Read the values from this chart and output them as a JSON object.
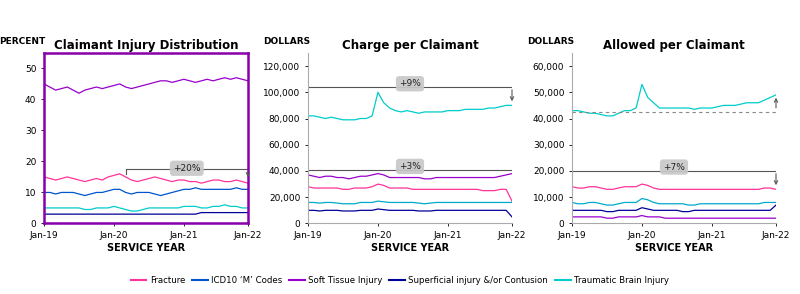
{
  "titles": [
    "Claimant Injury Distribution",
    "Charge per Claimant",
    "Allowed per Claimant"
  ],
  "ylabels": [
    "PERCENT",
    "DOLLARS",
    "DOLLARS"
  ],
  "xlabel": "SERVICE YEAR",
  "xtick_labels": [
    "Jan-19",
    "Jan-20",
    "Jan-21",
    "Jan-22"
  ],
  "chart1": {
    "ylim": [
      0,
      55
    ],
    "yticks": [
      0,
      10,
      20,
      30,
      40,
      50
    ],
    "series": {
      "Soft Tissue Injury": {
        "color": "#9900CC",
        "values": [
          45,
          44,
          43,
          43.5,
          44,
          43,
          42,
          43,
          43.5,
          44,
          43.5,
          44,
          44.5,
          45,
          44,
          43.5,
          44,
          44.5,
          45,
          45.5,
          46,
          46,
          45.5,
          46,
          46.5,
          46,
          45.5,
          46,
          46.5,
          46,
          46.5,
          47,
          46.5,
          47,
          46.5,
          46
        ]
      },
      "Fracture": {
        "color": "#FF3399",
        "values": [
          15,
          14.5,
          14,
          14.5,
          15,
          14.5,
          14,
          13.5,
          14,
          14.5,
          14,
          15,
          15.5,
          16,
          15,
          14,
          13.5,
          14,
          14.5,
          15,
          14.5,
          14,
          13.5,
          14,
          14,
          13.5,
          13.5,
          13,
          13.5,
          14,
          14,
          13.5,
          13.5,
          14,
          13.5,
          13
        ]
      },
      "ICD10 M Codes": {
        "color": "#0055CC",
        "values": [
          10,
          10,
          9.5,
          10,
          10,
          10,
          9.5,
          9,
          9.5,
          10,
          10,
          10.5,
          11,
          11,
          10,
          9.5,
          10,
          10,
          10,
          9.5,
          9,
          9.5,
          10,
          10.5,
          11,
          11,
          11.5,
          11,
          11,
          11,
          11,
          11,
          11,
          11.5,
          11,
          11
        ]
      },
      "Traumatic Brain Injury": {
        "color": "#00CCCC",
        "values": [
          5,
          5,
          5,
          5,
          5,
          5,
          5,
          4.5,
          4.5,
          5,
          5,
          5,
          5.5,
          5,
          4.5,
          4,
          4,
          4.5,
          5,
          5,
          5,
          5,
          5,
          5,
          5.5,
          5.5,
          5.5,
          5,
          5,
          5.5,
          5.5,
          6,
          5.5,
          5.5,
          5,
          5
        ]
      },
      "Superficial injury": {
        "color": "#000099",
        "values": [
          3,
          3,
          3,
          3,
          3,
          3,
          3,
          3,
          3,
          3,
          3,
          3,
          3,
          3,
          3,
          3,
          3,
          3,
          3,
          3,
          3,
          3,
          3,
          3,
          3,
          3,
          3,
          3.5,
          3.5,
          3.5,
          3.5,
          3.5,
          3.5,
          3.5,
          3.5,
          3.5
        ]
      }
    },
    "border_color": "#8800AA"
  },
  "chart2": {
    "ylim": [
      0,
      130000
    ],
    "yticks": [
      0,
      20000,
      40000,
      60000,
      80000,
      100000,
      120000
    ],
    "ytick_labels": [
      "0",
      "20,000",
      "40,000",
      "60,000",
      "80,000",
      "100,000",
      "120,000"
    ],
    "series": {
      "Traumatic Brain Injury": {
        "color": "#00CCCC",
        "values": [
          82000,
          82000,
          81000,
          80000,
          81000,
          80000,
          79000,
          79000,
          79000,
          80000,
          80000,
          82000,
          100000,
          92000,
          88000,
          86000,
          85000,
          86000,
          85000,
          84000,
          85000,
          85000,
          85000,
          85000,
          86000,
          86000,
          86000,
          87000,
          87000,
          87000,
          87000,
          88000,
          88000,
          89000,
          90000,
          90000
        ]
      },
      "Soft Tissue Injury": {
        "color": "#9900CC",
        "values": [
          37000,
          36000,
          35000,
          36000,
          36000,
          35000,
          35000,
          34000,
          35000,
          36000,
          36000,
          37000,
          38000,
          37000,
          35000,
          35000,
          35000,
          35000,
          35000,
          35000,
          34000,
          34000,
          35000,
          35000,
          35000,
          35000,
          35000,
          35000,
          35000,
          35000,
          35000,
          35000,
          35000,
          36000,
          37000,
          38000
        ]
      },
      "Fracture": {
        "color": "#FF3399",
        "values": [
          28000,
          27000,
          27000,
          27000,
          27000,
          27000,
          26000,
          26000,
          27000,
          27000,
          27000,
          28000,
          30000,
          29000,
          27000,
          27000,
          27000,
          27000,
          26000,
          26000,
          26000,
          26000,
          26000,
          26000,
          26000,
          26000,
          26000,
          26000,
          26000,
          26000,
          25000,
          25000,
          25000,
          26000,
          26000,
          17000
        ]
      },
      "ICD10 M Codes": {
        "color": "#00AACC",
        "values": [
          16000,
          16000,
          15500,
          16000,
          16000,
          15500,
          15000,
          15000,
          15000,
          16000,
          16000,
          16000,
          17000,
          16500,
          16000,
          16000,
          16000,
          16000,
          16000,
          15500,
          15000,
          15500,
          16000,
          16000,
          16000,
          16000,
          16000,
          16000,
          16000,
          16000,
          16000,
          16000,
          16000,
          16000,
          16000,
          16000
        ]
      },
      "Superficial injury": {
        "color": "#000099",
        "values": [
          10000,
          10000,
          9500,
          10000,
          10000,
          10000,
          9500,
          9500,
          9500,
          10000,
          10000,
          10000,
          11000,
          10500,
          10000,
          10000,
          10000,
          10000,
          10000,
          9500,
          9500,
          9500,
          10000,
          10000,
          10000,
          10000,
          10000,
          10000,
          10000,
          10000,
          10000,
          10000,
          10000,
          10000,
          10000,
          5000
        ]
      }
    }
  },
  "chart3": {
    "ylim": [
      0,
      65000
    ],
    "yticks": [
      0,
      10000,
      20000,
      30000,
      40000,
      50000,
      60000
    ],
    "ytick_labels": [
      "0",
      "10,000",
      "20,000",
      "30,000",
      "40,000",
      "50,000",
      "60,000"
    ],
    "series": {
      "Traumatic Brain Injury": {
        "color": "#00CCCC",
        "values": [
          43000,
          43000,
          42500,
          42000,
          42000,
          41500,
          41000,
          41000,
          42000,
          43000,
          43000,
          44000,
          53000,
          48000,
          46000,
          44000,
          44000,
          44000,
          44000,
          44000,
          44000,
          43500,
          44000,
          44000,
          44000,
          44500,
          45000,
          45000,
          45000,
          45500,
          46000,
          46000,
          46000,
          47000,
          48000,
          49000
        ]
      },
      "Fracture": {
        "color": "#FF3399",
        "values": [
          14000,
          13500,
          13500,
          14000,
          14000,
          13500,
          13000,
          13000,
          13500,
          14000,
          14000,
          14000,
          15000,
          14500,
          13500,
          13000,
          13000,
          13000,
          13000,
          13000,
          13000,
          13000,
          13000,
          13000,
          13000,
          13000,
          13000,
          13000,
          13000,
          13000,
          13000,
          13000,
          13000,
          13500,
          13500,
          13000
        ]
      },
      "ICD10 M Codes": {
        "color": "#00AACC",
        "values": [
          8000,
          7500,
          7500,
          8000,
          8000,
          7500,
          7000,
          7000,
          7500,
          8000,
          8000,
          8000,
          9500,
          9000,
          8000,
          7500,
          7500,
          7500,
          7500,
          7500,
          7000,
          7000,
          7500,
          7500,
          7500,
          7500,
          7500,
          7500,
          7500,
          7500,
          7500,
          7500,
          7500,
          8000,
          8000,
          8000
        ]
      },
      "Superficial injury": {
        "color": "#000099",
        "values": [
          5000,
          5000,
          5000,
          5000,
          5000,
          5000,
          4500,
          4500,
          5000,
          5000,
          5000,
          5000,
          6000,
          5500,
          5000,
          5000,
          5000,
          5000,
          5000,
          4500,
          4500,
          5000,
          5000,
          5000,
          5000,
          5000,
          5000,
          5000,
          5000,
          5000,
          5000,
          5000,
          5000,
          5000,
          5000,
          7000
        ]
      },
      "Soft Tissue Injury": {
        "color": "#9900CC",
        "values": [
          2500,
          2500,
          2500,
          2500,
          2500,
          2500,
          2000,
          2000,
          2500,
          2500,
          2500,
          2500,
          3000,
          2500,
          2500,
          2500,
          2000,
          2000,
          2000,
          2000,
          2000,
          2000,
          2000,
          2000,
          2000,
          2000,
          2000,
          2000,
          2000,
          2000,
          2000,
          2000,
          2000,
          2000,
          2000,
          2000
        ]
      }
    },
    "dotted_line_y": 42500
  },
  "legend": [
    {
      "label": "Fracture",
      "color": "#FF3399"
    },
    {
      "label": "ICD10 ‘M’ Codes",
      "color": "#0055CC"
    },
    {
      "label": "Soft Tissue Injury",
      "color": "#9900CC"
    },
    {
      "label": "Superficial injury &/or Contusion",
      "color": "#000099"
    },
    {
      "label": "Traumatic Brain Injury",
      "color": "#00CCCC"
    }
  ]
}
